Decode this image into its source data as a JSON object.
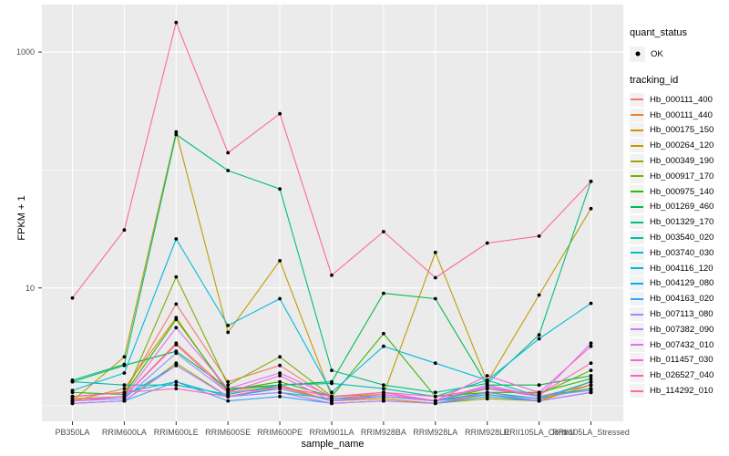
{
  "figure": {
    "background": "#FFFFFF",
    "panel_bg": "#EBEBEB",
    "grid_color": "#FFFFFF",
    "axis_text_color": "#4D4D4D",
    "tick_mark_color": "#333333",
    "legend_key_bg": "#F2F2F2"
  },
  "legend": {
    "quant_status_title": "quant_status",
    "quant_status_items": [
      {
        "label": "OK",
        "marker": "black-point"
      }
    ],
    "tracking_id_title": "tracking_id"
  },
  "chart_data": {
    "type": "line",
    "title": "",
    "xlabel": "sample_name",
    "ylabel": "FPKM + 1",
    "y_scale": "log10",
    "y_major_ticks": [
      10,
      1000
    ],
    "y_minor_gridlines": [
      1,
      100
    ],
    "ylim": [
      0.75,
      2500
    ],
    "grid": true,
    "legend_position": "right",
    "point_marker": {
      "shape": "solid-circle",
      "color": "#000000",
      "legend_label": "OK"
    },
    "categories": [
      "PB350LA",
      "RRIM600LA",
      "RRIM600LE",
      "RRIM600SE",
      "RRIM600PE",
      "RRIM901LA",
      "RRIM928BA",
      "RRIM928LA",
      "RRIM928LE",
      "RRII105LA_Control",
      "RRII105LA_Stressed"
    ],
    "series": [
      {
        "name": "Hb_000111_400",
        "color": "#F8766D",
        "values": [
          1.2,
          1.3,
          7.3,
          1.6,
          2.2,
          1.15,
          1.25,
          1.1,
          1.4,
          1.2,
          1.5
        ]
      },
      {
        "name": "Hb_000111_440",
        "color": "#EA8331",
        "values": [
          1.15,
          1.2,
          3.4,
          1.35,
          1.5,
          1.1,
          1.2,
          1.1,
          1.3,
          1.15,
          1.4
        ]
      },
      {
        "name": "Hb_000175_150",
        "color": "#D89000",
        "values": [
          1.1,
          1.4,
          5.6,
          1.3,
          1.45,
          1.1,
          1.15,
          1.05,
          1.25,
          1.1,
          1.5
        ]
      },
      {
        "name": "Hb_000264_120",
        "color": "#C09B00",
        "values": [
          1.1,
          2.6,
          210,
          4.2,
          17,
          1.2,
          1.25,
          20,
          1.6,
          8.7,
          47
        ]
      },
      {
        "name": "Hb_000349_190",
        "color": "#A3A500",
        "values": [
          1.05,
          1.1,
          2.3,
          1.2,
          1.3,
          1.05,
          1.1,
          1.05,
          1.15,
          1.1,
          1.6
        ]
      },
      {
        "name": "Hb_000917_170",
        "color": "#7CAE00",
        "values": [
          1.1,
          1.2,
          12.4,
          1.5,
          2.6,
          1.2,
          1.3,
          1.1,
          1.4,
          1.25,
          2.0
        ]
      },
      {
        "name": "Hb_000975_140",
        "color": "#39B600",
        "values": [
          1.3,
          1.25,
          5.4,
          1.35,
          1.6,
          1.2,
          4.1,
          1.2,
          1.3,
          1.3,
          1.7
        ]
      },
      {
        "name": "Hb_001269_460",
        "color": "#00BB4E",
        "values": [
          1.6,
          2.2,
          2.9,
          1.4,
          1.5,
          1.6,
          9.0,
          8.1,
          1.5,
          1.5,
          1.8
        ]
      },
      {
        "name": "Hb_001329_170",
        "color": "#00BF7D",
        "values": [
          1.65,
          2.25,
          200,
          99,
          69,
          2.0,
          1.5,
          1.3,
          1.55,
          4.0,
          80
        ]
      },
      {
        "name": "Hb_003540_020",
        "color": "#00C1A3",
        "values": [
          1.6,
          1.5,
          1.5,
          1.25,
          1.5,
          1.55,
          1.4,
          1.2,
          1.65,
          1.2,
          1.4
        ]
      },
      {
        "name": "Hb_003740_030",
        "color": "#00BFC4",
        "values": [
          1.2,
          1.3,
          1.6,
          1.2,
          1.3,
          1.15,
          1.2,
          1.1,
          1.25,
          1.1,
          1.3
        ]
      },
      {
        "name": "Hb_004116_120",
        "color": "#00BADE",
        "values": [
          1.35,
          1.9,
          26,
          4.8,
          8.1,
          1.3,
          3.2,
          2.3,
          1.65,
          3.7,
          7.4
        ]
      },
      {
        "name": "Hb_004129_080",
        "color": "#00B0F6",
        "values": [
          1.1,
          1.2,
          2.2,
          1.2,
          1.4,
          1.1,
          1.2,
          1.1,
          1.3,
          1.15,
          1.6
        ]
      },
      {
        "name": "Hb_004163_020",
        "color": "#35A2FF",
        "values": [
          1.05,
          1.1,
          1.6,
          1.1,
          1.2,
          1.05,
          1.1,
          1.05,
          1.2,
          1.1,
          1.3
        ]
      },
      {
        "name": "Hb_007113_080",
        "color": "#9590FF",
        "values": [
          1.1,
          1.15,
          2.8,
          1.3,
          1.4,
          1.1,
          1.2,
          1.1,
          1.45,
          1.2,
          1.35
        ]
      },
      {
        "name": "Hb_007382_090",
        "color": "#C77CFF",
        "values": [
          1.05,
          1.1,
          2.2,
          1.2,
          1.3,
          1.05,
          1.1,
          1.05,
          1.3,
          1.1,
          1.3
        ]
      },
      {
        "name": "Hb_007432_010",
        "color": "#E76BF3",
        "values": [
          1.1,
          1.2,
          4.6,
          1.4,
          1.9,
          1.2,
          1.3,
          1.1,
          1.5,
          1.2,
          3.4
        ]
      },
      {
        "name": "Hb_011457_030",
        "color": "#FA62DB",
        "values": [
          1.1,
          1.2,
          3.3,
          1.3,
          1.8,
          1.1,
          1.25,
          1.1,
          1.8,
          1.3,
          3.2
        ]
      },
      {
        "name": "Hb_026527_040",
        "color": "#FF62BC",
        "values": [
          1.2,
          1.3,
          1.4,
          1.2,
          1.45,
          1.2,
          1.3,
          1.2,
          1.4,
          1.25,
          2.3
        ]
      },
      {
        "name": "Hb_114292_010",
        "color": "#FF6A98",
        "values": [
          8.2,
          31,
          1780,
          140,
          300,
          12.8,
          30,
          12.2,
          24,
          27.5,
          80
        ]
      }
    ]
  }
}
